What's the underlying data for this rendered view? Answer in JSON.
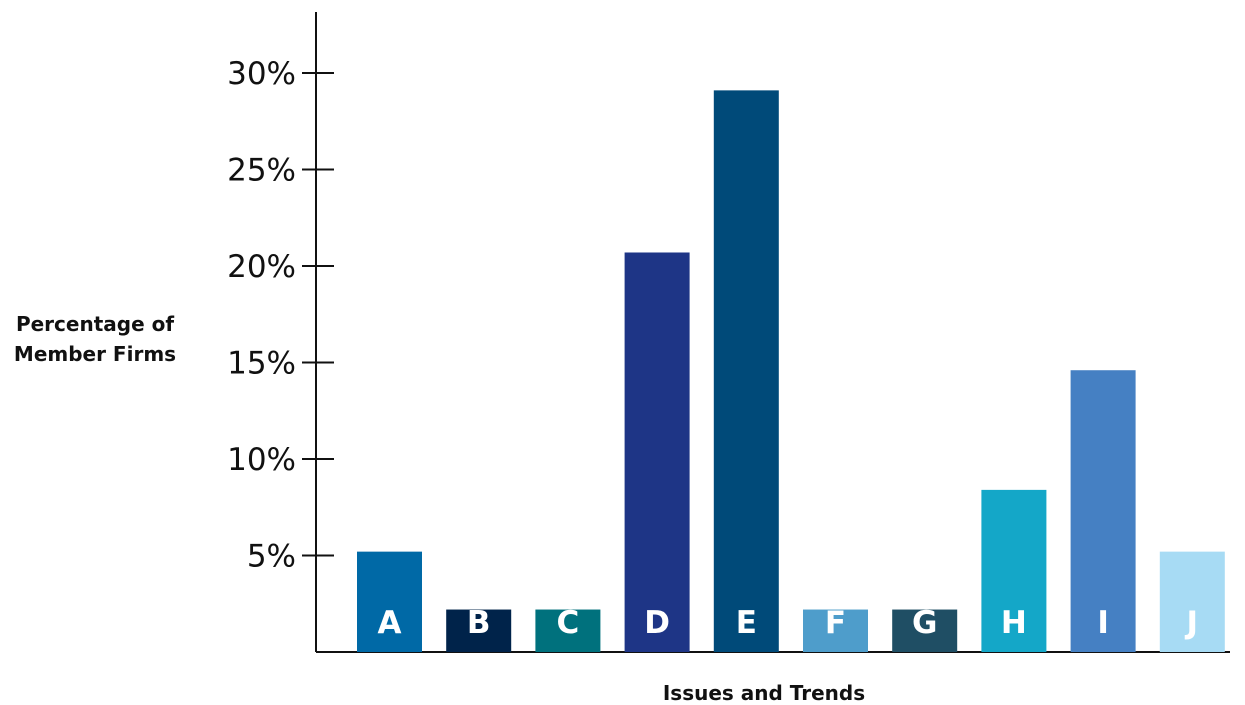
{
  "chart_data": {
    "type": "bar",
    "title": "",
    "xlabel": "Issues and Trends",
    "ylabel_lines": [
      "Percentage of",
      "Member Firms"
    ],
    "categories": [
      "A",
      "B",
      "C",
      "D",
      "E",
      "F",
      "G",
      "H",
      "I",
      "J"
    ],
    "values": [
      5.2,
      2.2,
      2.2,
      20.7,
      29.1,
      2.2,
      2.2,
      8.4,
      14.6,
      5.2
    ],
    "colors": [
      "#0069a6",
      "#00234a",
      "#00717d",
      "#1e3586",
      "#004a79",
      "#4e9dcb",
      "#1f4e64",
      "#14a7c8",
      "#4580c3",
      "#a7dbf4"
    ],
    "yticks": [
      5,
      10,
      15,
      20,
      25,
      30
    ],
    "ytick_labels": [
      "5%",
      "10%",
      "15%",
      "20%",
      "25%",
      "30%"
    ],
    "ylim": [
      0,
      30
    ],
    "grid": false,
    "legend": "none"
  }
}
